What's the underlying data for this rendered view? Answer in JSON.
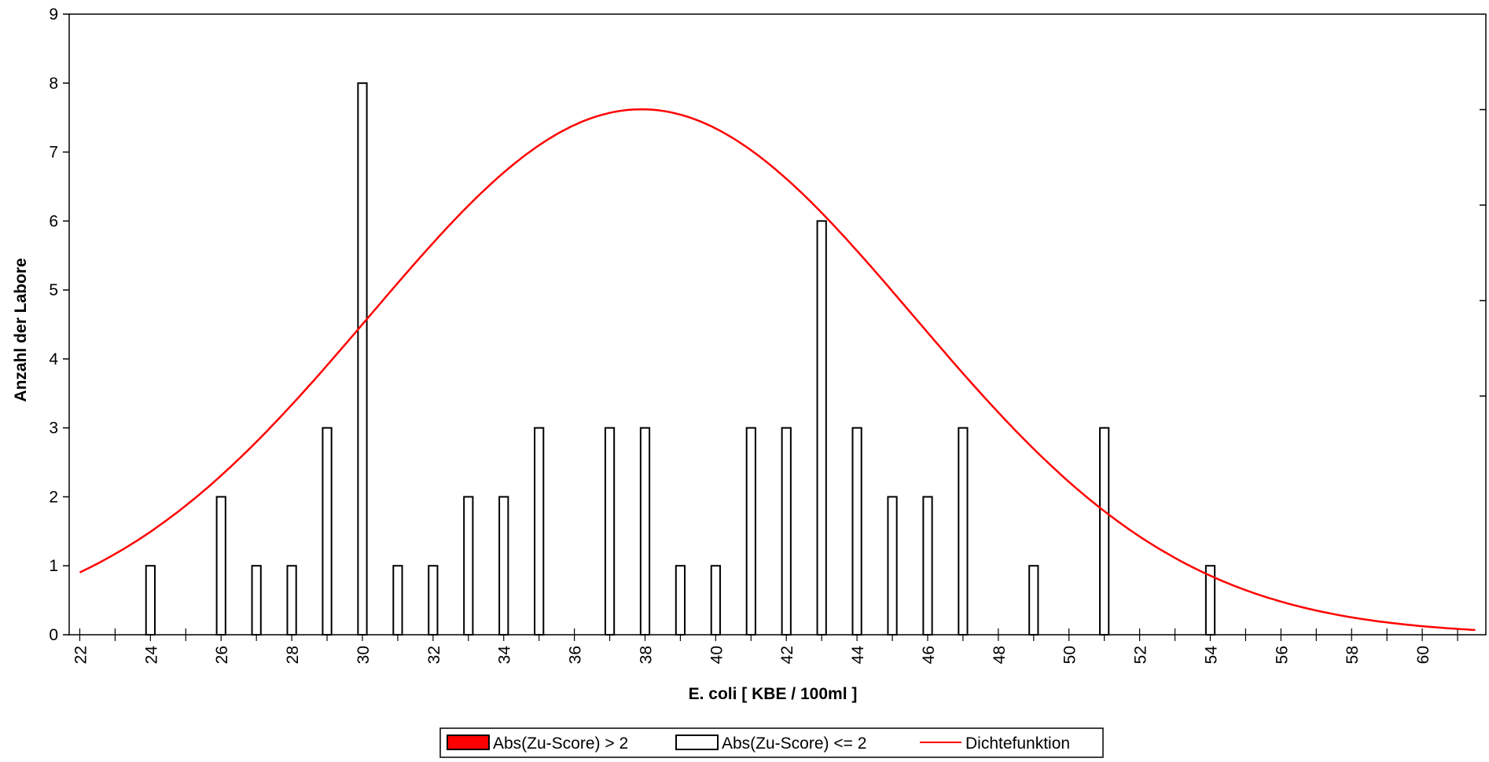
{
  "chart_data": {
    "type": "bar",
    "title": "",
    "xlabel": "E. coli [ KBE / 100ml ]",
    "ylabel": "Anzahl der Labore",
    "xlim": [
      21.7,
      61.8
    ],
    "ylim": [
      0,
      9
    ],
    "xticks": [
      22,
      24,
      26,
      28,
      30,
      32,
      34,
      36,
      38,
      40,
      42,
      44,
      46,
      48,
      50,
      52,
      54,
      56,
      58,
      60
    ],
    "yticks": [
      0,
      1,
      2,
      3,
      4,
      5,
      6,
      7,
      8,
      9
    ],
    "bar_width": 0.25,
    "series": [
      {
        "name": "Abs(Zu-Score) > 2",
        "color": "#ff0000",
        "x": [],
        "values": []
      },
      {
        "name": "Abs(Zu-Score) <= 2",
        "color": "#ffffff",
        "x": [
          24,
          26,
          27,
          28,
          29,
          30,
          31,
          32,
          33,
          34,
          35,
          37,
          38,
          39,
          40,
          41,
          42,
          43,
          44,
          45,
          46,
          47,
          49,
          51,
          54
        ],
        "values": [
          1,
          2,
          1,
          1,
          3,
          8,
          1,
          1,
          2,
          2,
          3,
          3,
          3,
          1,
          1,
          3,
          3,
          6,
          3,
          2,
          2,
          3,
          1,
          3,
          1
        ]
      }
    ],
    "density": {
      "name": "Dichtefunktion",
      "color": "#ff0000",
      "peak": 7.62,
      "mean": 37.9,
      "sd": 7.7,
      "x_range": [
        22,
        61.5
      ]
    },
    "grid": false,
    "legend_position": "bottom-center"
  }
}
